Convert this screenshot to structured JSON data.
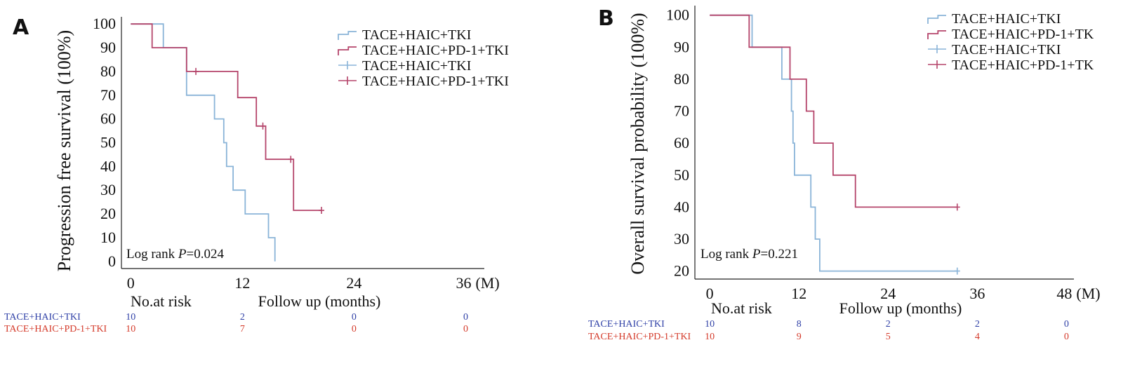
{
  "colors": {
    "tki": "#8ab4d8",
    "pd1": "#b5456b",
    "risk_tki": "#2e3fa6",
    "risk_pd1": "#d43a2a",
    "axis": "#222222"
  },
  "chart_data": [
    {
      "panel": "A",
      "type": "line",
      "ylabel": "Progression free survival (100%)",
      "xlabel": "Follow up (months)",
      "x_unit": "(M)",
      "xticks": [
        0,
        12,
        24,
        36
      ],
      "yticks": [
        0,
        10,
        20,
        30,
        40,
        50,
        60,
        70,
        80,
        90,
        100
      ],
      "xlim": [
        -1,
        38
      ],
      "ylim": [
        -3,
        103
      ],
      "annotation": {
        "prefix": "Log rank ",
        "p": "P",
        "suffix": "=0.024"
      },
      "legend": [
        "TACE+HAIC+TKI",
        "TACE+HAIC+PD-1+TKI",
        "TACE+HAIC+TKI",
        "TACE+HAIC+PD-1+TKI"
      ],
      "series": [
        {
          "name": "TACE+HAIC+TKI",
          "color_key": "tki",
          "steps": [
            [
              0,
              100
            ],
            [
              3.5,
              100
            ],
            [
              3.5,
              90
            ],
            [
              6,
              90
            ],
            [
              6,
              70
            ],
            [
              9,
              70
            ],
            [
              9,
              60
            ],
            [
              10,
              60
            ],
            [
              10,
              50
            ],
            [
              10.3,
              50
            ],
            [
              10.3,
              40
            ],
            [
              11,
              40
            ],
            [
              11,
              30
            ],
            [
              12.3,
              30
            ],
            [
              12.3,
              20
            ],
            [
              14.8,
              20
            ],
            [
              14.8,
              10
            ],
            [
              15.5,
              10
            ],
            [
              15.5,
              0
            ]
          ],
          "censored": []
        },
        {
          "name": "TACE+HAIC+PD-1+TKI",
          "color_key": "pd1",
          "steps": [
            [
              0,
              100
            ],
            [
              2.3,
              100
            ],
            [
              2.3,
              90
            ],
            [
              6,
              90
            ],
            [
              6,
              80
            ],
            [
              11.5,
              80
            ],
            [
              11.5,
              69
            ],
            [
              13.5,
              69
            ],
            [
              13.5,
              57
            ],
            [
              14.5,
              57
            ],
            [
              14.5,
              43
            ],
            [
              17.5,
              43
            ],
            [
              17.5,
              21.5
            ],
            [
              20.5,
              21.5
            ]
          ],
          "censored": [
            [
              7,
              80
            ],
            [
              14.2,
              57
            ],
            [
              17.2,
              43
            ],
            [
              20.5,
              21.5
            ]
          ]
        }
      ],
      "risk_table": {
        "title": "No.at risk",
        "rows": [
          {
            "label": "TACE+HAIC+TKI",
            "color_key": "risk_tki",
            "values": [
              "10",
              "2",
              "0",
              "0"
            ]
          },
          {
            "label": "TACE+HAIC+PD-1+TKI",
            "color_key": "risk_pd1",
            "values": [
              "10",
              "7",
              "0",
              "0"
            ]
          }
        ]
      }
    },
    {
      "panel": "B",
      "type": "line",
      "ylabel": "Overall survival probability (100%)",
      "xlabel": "Follow up (months)",
      "x_unit": "(M)",
      "xticks": [
        0,
        12,
        24,
        36,
        48
      ],
      "yticks": [
        20,
        30,
        40,
        50,
        60,
        70,
        80,
        90,
        100
      ],
      "xlim": [
        -2,
        49
      ],
      "ylim": [
        17.5,
        103
      ],
      "annotation": {
        "prefix": "Log rank ",
        "p": "P",
        "suffix": "=0.221"
      },
      "legend": [
        "TACE+HAIC+TKI",
        "TACE+HAIC+PD-1+TK",
        "TACE+HAIC+TKI",
        "TACE+HAIC+PD-1+TK"
      ],
      "series": [
        {
          "name": "TACE+HAIC+TKI",
          "color_key": "tki",
          "steps": [
            [
              0,
              100
            ],
            [
              5.7,
              100
            ],
            [
              5.7,
              90
            ],
            [
              9.7,
              90
            ],
            [
              9.7,
              80
            ],
            [
              11,
              80
            ],
            [
              11,
              70
            ],
            [
              11.2,
              70
            ],
            [
              11.2,
              60
            ],
            [
              11.4,
              60
            ],
            [
              11.4,
              50
            ],
            [
              13.6,
              50
            ],
            [
              13.6,
              40
            ],
            [
              14.2,
              40
            ],
            [
              14.2,
              30
            ],
            [
              14.8,
              30
            ],
            [
              14.8,
              20
            ],
            [
              33.3,
              20
            ]
          ],
          "censored": [
            [
              33.3,
              20
            ]
          ]
        },
        {
          "name": "TACE+HAIC+PD-1+TK",
          "color_key": "pd1",
          "steps": [
            [
              0,
              100
            ],
            [
              5.3,
              100
            ],
            [
              5.3,
              90
            ],
            [
              10.8,
              90
            ],
            [
              10.8,
              80
            ],
            [
              13,
              80
            ],
            [
              13,
              70
            ],
            [
              14,
              70
            ],
            [
              14,
              60
            ],
            [
              16.6,
              60
            ],
            [
              16.6,
              50
            ],
            [
              19.6,
              50
            ],
            [
              19.6,
              40
            ],
            [
              33.3,
              40
            ]
          ],
          "censored": [
            [
              33.3,
              40
            ]
          ]
        }
      ],
      "risk_table": {
        "title": "No.at risk",
        "rows": [
          {
            "label": "TACE+HAIC+TKI",
            "color_key": "risk_tki",
            "values": [
              "10",
              "8",
              "2",
              "2",
              "0"
            ]
          },
          {
            "label": "TACE+HAIC+PD-1+TKI",
            "color_key": "risk_pd1",
            "values": [
              "10",
              "9",
              "5",
              "4",
              "0"
            ]
          }
        ]
      }
    }
  ]
}
